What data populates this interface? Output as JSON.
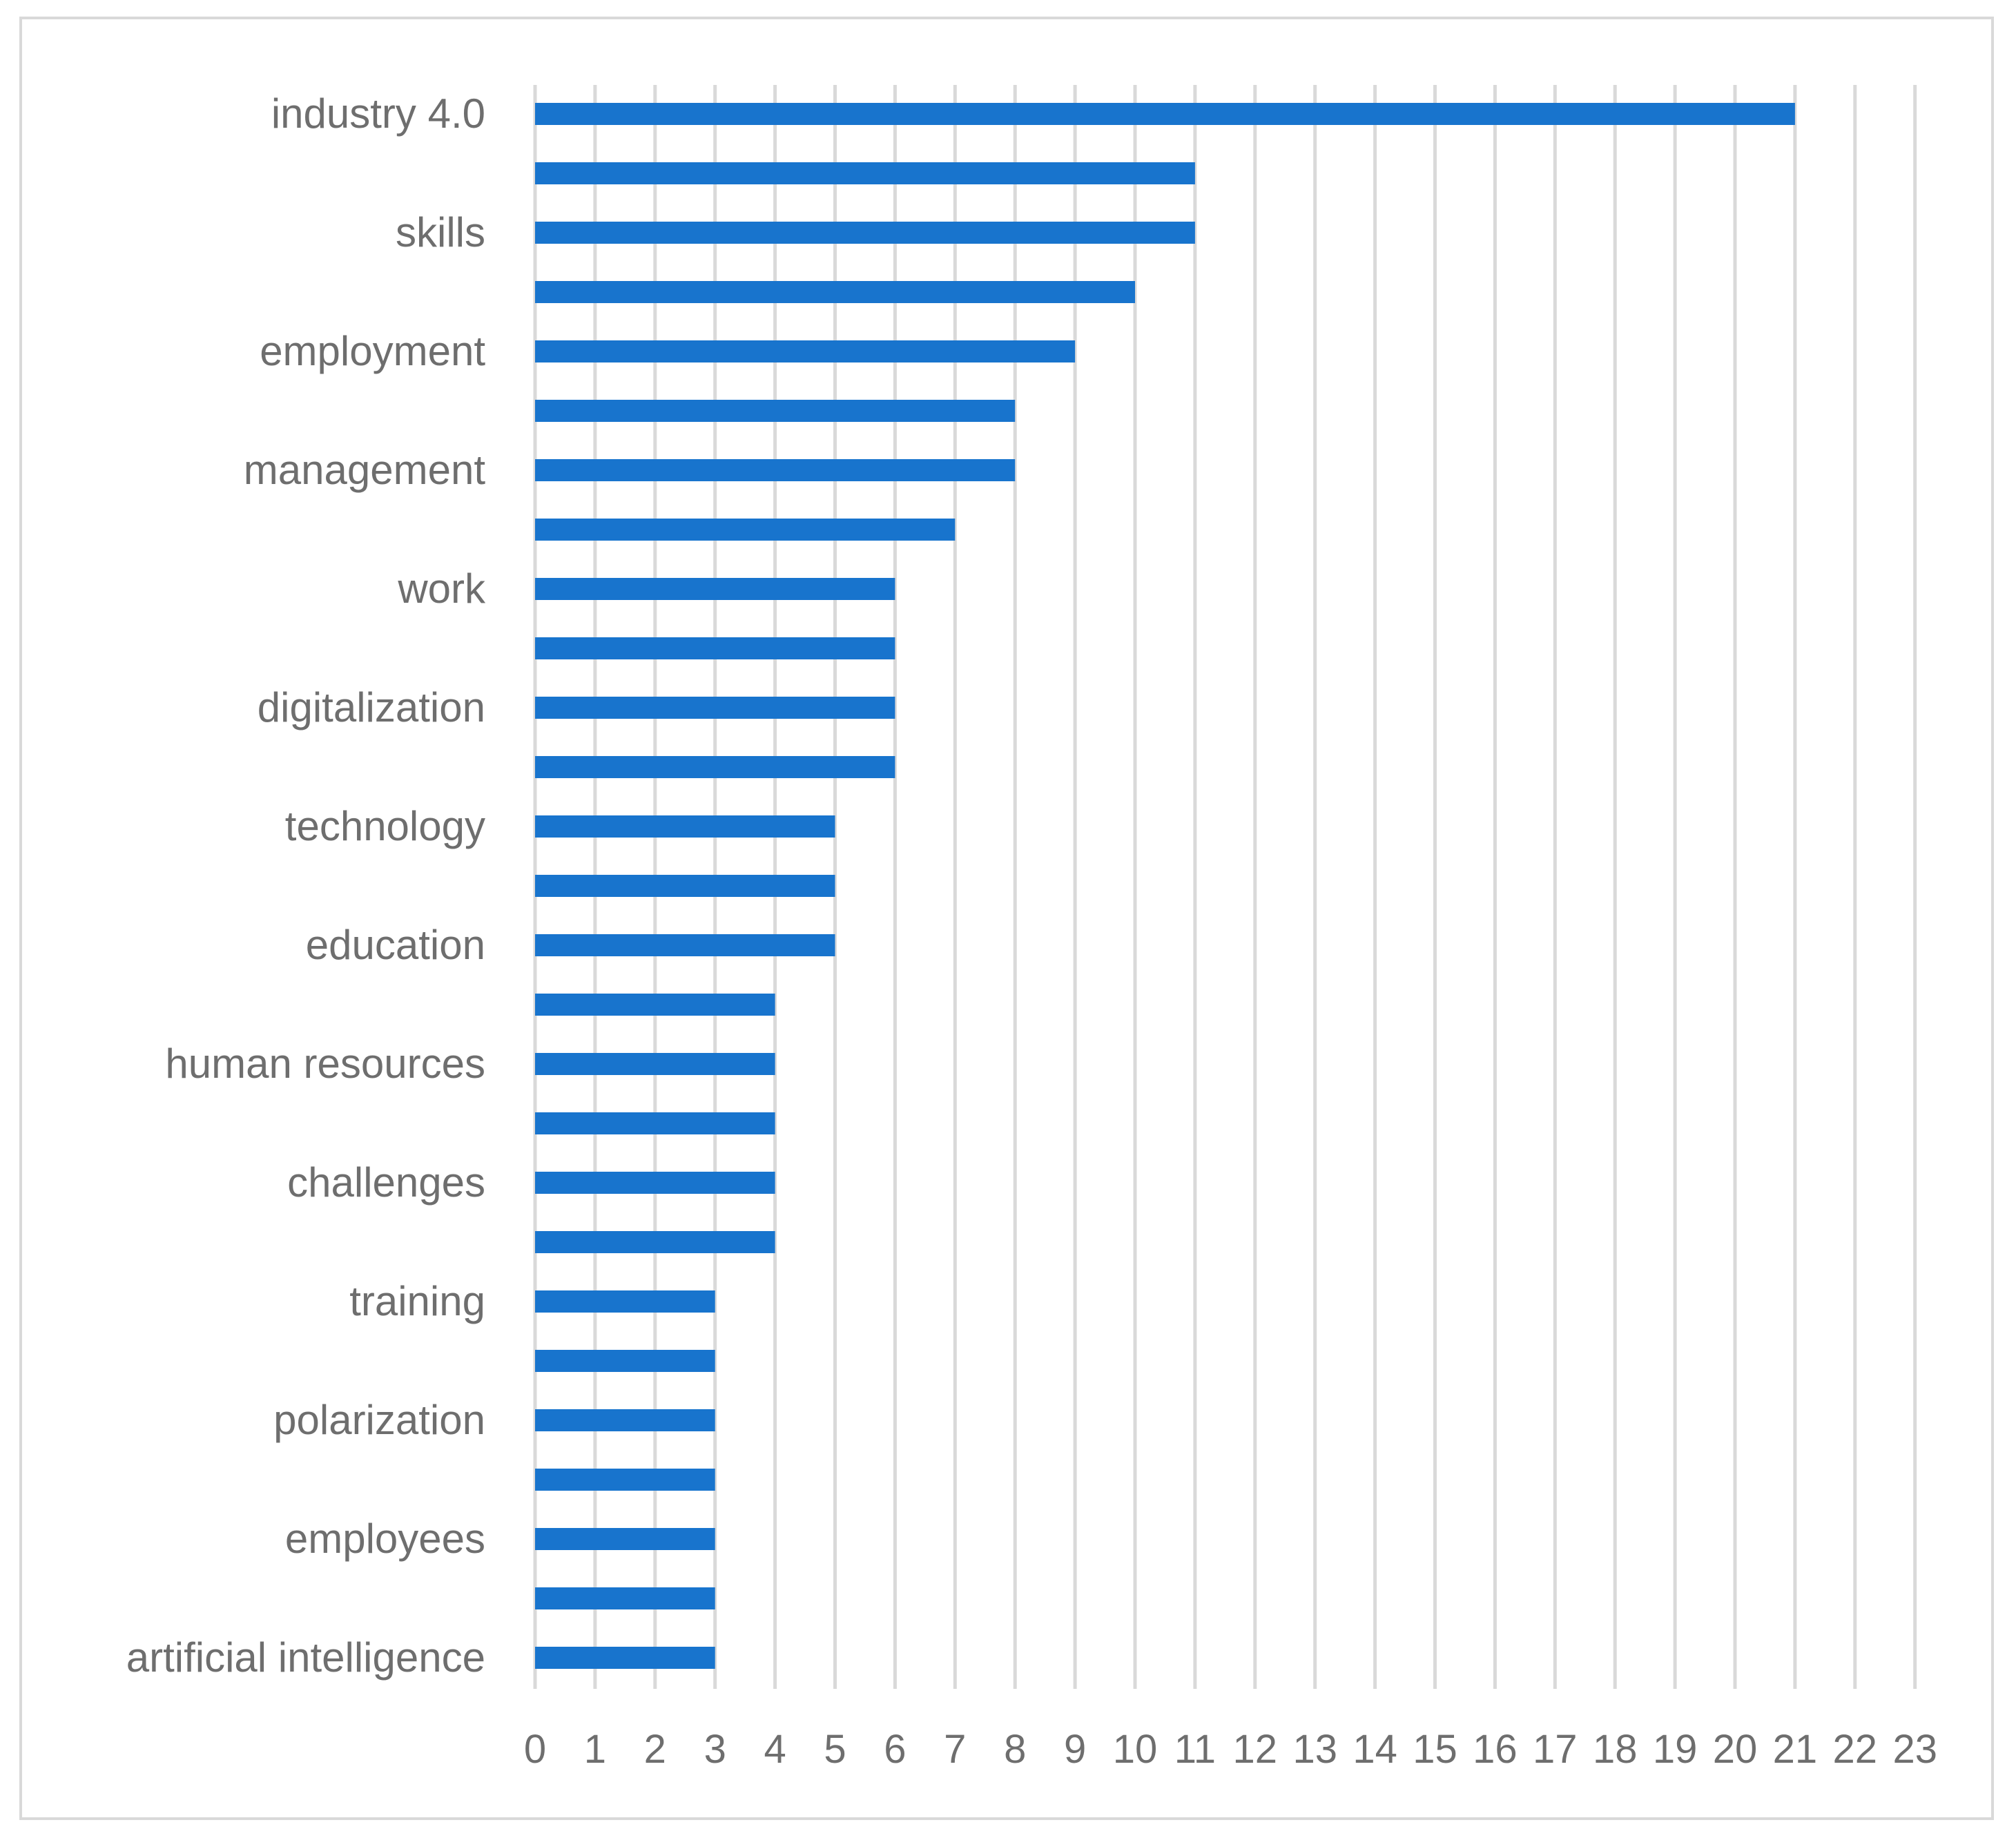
{
  "chart_data": {
    "type": "bar",
    "orientation": "horizontal",
    "categories": [
      "industry 4.0",
      "",
      "skills",
      "",
      "employment",
      "",
      "management",
      "",
      "work",
      "",
      "digitalization",
      "",
      "technology",
      "",
      "education",
      "",
      "human resources",
      "",
      "challenges",
      "",
      "training",
      "",
      "polarization",
      "",
      "employees",
      "",
      "artificial intelligence"
    ],
    "values": [
      21,
      11,
      11,
      10,
      9,
      8,
      8,
      7,
      6,
      6,
      6,
      6,
      5,
      5,
      5,
      4,
      4,
      4,
      4,
      4,
      3,
      3,
      3,
      3,
      3,
      3,
      3
    ],
    "xlim": [
      0,
      23
    ],
    "xticks": [
      "0",
      "1",
      "2",
      "3",
      "4",
      "5",
      "6",
      "7",
      "8",
      "9",
      "10",
      "11",
      "12",
      "13",
      "14",
      "15",
      "16",
      "17",
      "18",
      "19",
      "20",
      "21",
      "22",
      "23"
    ],
    "grid": "vertical",
    "bar_color": "#1874cd",
    "grid_color": "#d9d9d9",
    "text_color": "#6e6e6e"
  }
}
